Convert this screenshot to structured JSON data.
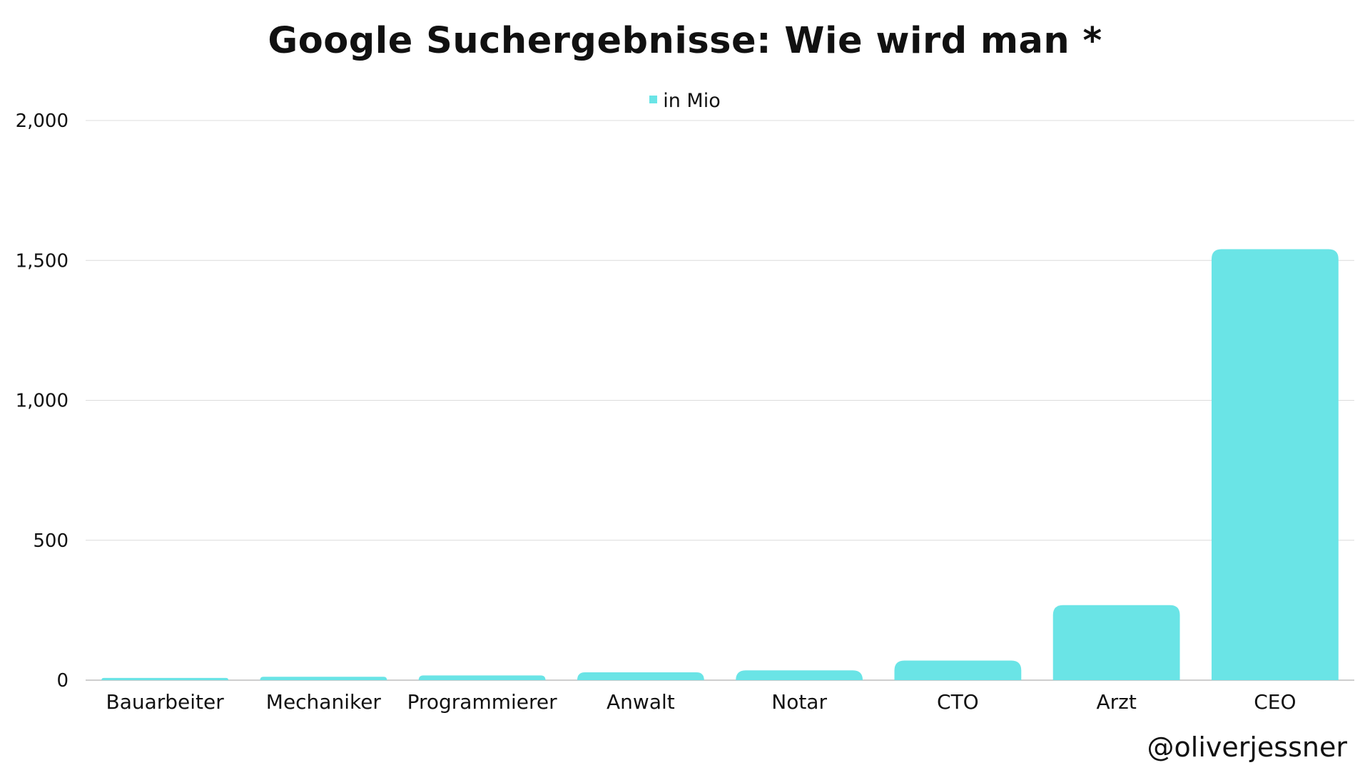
{
  "chart_data": {
    "type": "bar",
    "title": "Google Suchergebnisse: Wie wird man *",
    "categories": [
      "Bauarbeiter",
      "Mechaniker",
      "Programmierer",
      "Anwalt",
      "Notar",
      "CTO",
      "Arzt",
      "CEO"
    ],
    "series": [
      {
        "name": "in Mio",
        "values": [
          8,
          12,
          17,
          28,
          35,
          70,
          268,
          1540
        ],
        "color": "#6ae4e6"
      }
    ],
    "xlabel": "",
    "ylabel": "",
    "ylim": [
      0,
      2000
    ],
    "yticks": [
      0,
      500,
      1000,
      1500,
      2000
    ],
    "ytick_labels": [
      "0",
      "500",
      "1,000",
      "1,500",
      "2,000"
    ],
    "grid": true,
    "legend_position": "top-center"
  },
  "watermark": "@oliverjessner"
}
